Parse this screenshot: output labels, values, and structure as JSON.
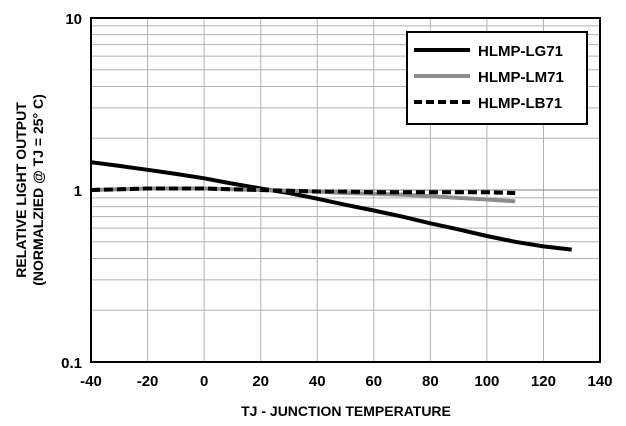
{
  "chart_data": {
    "type": "line",
    "title": "",
    "xlabel": "TJ - JUNCTION TEMPERATURE",
    "ylabel": [
      "RELATIVE LIGHT OUTPUT",
      "(NORMALZIED @ TJ = 25° C)"
    ],
    "xlim": [
      -40,
      140
    ],
    "ylim": [
      0.1,
      10
    ],
    "yscale": "log",
    "x_ticks": [
      -40,
      -20,
      0,
      20,
      40,
      60,
      80,
      100,
      120,
      140
    ],
    "x_tick_labels": [
      "-40",
      "-20",
      "0",
      "20",
      "40",
      "60",
      "80",
      "100",
      "120",
      "140"
    ],
    "y_ticks": [
      0.1,
      1,
      10
    ],
    "y_tick_labels": [
      "0.1",
      "1",
      "10"
    ],
    "grid": true,
    "legend_position": "top-right",
    "series": [
      {
        "name": "HLMP-LG71",
        "color": "#000000",
        "dash": "solid",
        "x": [
          -40,
          -30,
          -20,
          -10,
          0,
          10,
          20,
          30,
          40,
          50,
          60,
          70,
          80,
          90,
          100,
          110,
          120,
          130
        ],
        "y": [
          1.45,
          1.38,
          1.31,
          1.24,
          1.17,
          1.09,
          1.02,
          0.96,
          0.89,
          0.82,
          0.76,
          0.7,
          0.64,
          0.59,
          0.54,
          0.5,
          0.47,
          0.45
        ]
      },
      {
        "name": "HLMP-LM71",
        "color": "#8c8c8c",
        "dash": "solid",
        "x": [
          -40,
          -30,
          -20,
          -10,
          0,
          10,
          20,
          30,
          40,
          50,
          60,
          70,
          80,
          90,
          100,
          110
        ],
        "y": [
          1.0,
          1.01,
          1.02,
          1.02,
          1.02,
          1.01,
          1.0,
          0.99,
          0.98,
          0.96,
          0.95,
          0.94,
          0.92,
          0.9,
          0.88,
          0.86
        ]
      },
      {
        "name": "HLMP-LB71",
        "color": "#000000",
        "dash": "dashed",
        "x": [
          -40,
          -30,
          -20,
          -10,
          0,
          10,
          20,
          30,
          40,
          50,
          60,
          70,
          80,
          90,
          100,
          110
        ],
        "y": [
          1.0,
          1.01,
          1.02,
          1.02,
          1.02,
          1.01,
          1.0,
          0.99,
          0.98,
          0.98,
          0.97,
          0.97,
          0.97,
          0.97,
          0.97,
          0.96
        ]
      }
    ]
  }
}
